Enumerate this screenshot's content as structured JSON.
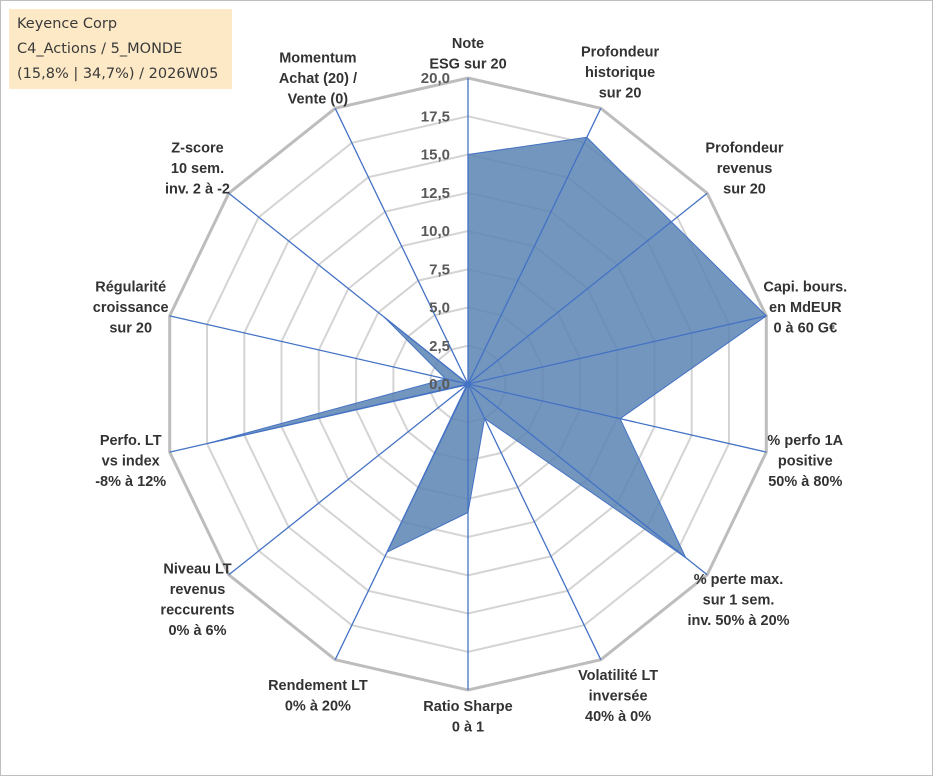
{
  "header": {
    "line1": "Keyence Corp",
    "line2": "C4_Actions / 5_MONDE",
    "line3": "(15,8% | 34,7%) / 2026W05"
  },
  "chart_data": {
    "type": "radar",
    "rmin": 0,
    "rmax": 20,
    "ticks": [
      "0,0",
      "2,5",
      "5,0",
      "7,5",
      "10,0",
      "12,5",
      "15,0",
      "17,5",
      "20,0"
    ],
    "axes": [
      [
        "Note",
        "ESG sur 20"
      ],
      [
        "Profondeur",
        "historique",
        "sur 20"
      ],
      [
        "Profondeur",
        "revenus",
        "sur 20"
      ],
      [
        "Capi. bours.",
        "en MdEUR",
        "0 à 60 G€"
      ],
      [
        "% perfo 1A",
        "positive",
        "50% à 80%"
      ],
      [
        "% perte max.",
        "sur 1 sem.",
        "inv. 50% à 20%"
      ],
      [
        "Volatilité LT",
        "inversée",
        "40% à 0%"
      ],
      [
        "Ratio Sharpe",
        "0 à 1"
      ],
      [
        "Rendement LT",
        "0% à 20%"
      ],
      [
        "Niveau LT",
        "revenus",
        "reccurents",
        "0% à 6%"
      ],
      [
        "Perfo. LT",
        "vs index",
        "-8% à 12%"
      ],
      [
        "Régularité",
        "croissance",
        "sur 20"
      ],
      [
        "Z-score",
        "10 sem.",
        "inv. 2 à -2"
      ],
      [
        "Momentum",
        "Achat (20) /",
        "Vente (0)"
      ]
    ],
    "values": [
      15.0,
      17.9,
      17.0,
      20.0,
      10.2,
      18.2,
      2.5,
      8.4,
      12.2,
      0.1,
      17.5,
      1.5,
      7.0,
      0.0
    ],
    "fill_color": "#5b84b4",
    "axis_color": "#4472c4",
    "grid_color": "#c8c8c8"
  }
}
